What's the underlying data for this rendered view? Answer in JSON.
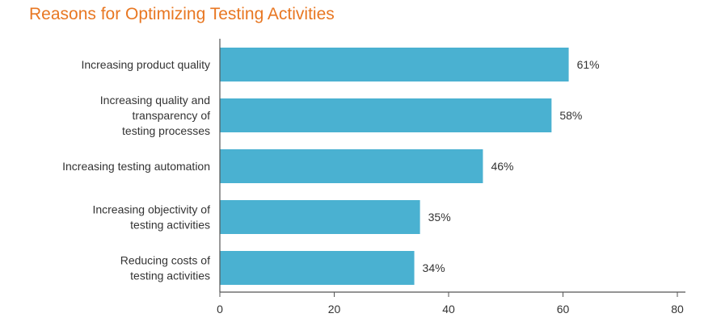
{
  "chart_data": {
    "type": "bar",
    "orientation": "horizontal",
    "title": "Reasons for Optimizing Testing Activities",
    "categories": [
      "Increasing product quality",
      "Increasing quality and transparency of testing processes",
      "Increasing testing automation",
      "Increasing objectivity of testing activities",
      "Reducing costs of testing activities"
    ],
    "category_lines": [
      [
        "Increasing product quality"
      ],
      [
        "Increasing quality and",
        "transparency of",
        "testing processes"
      ],
      [
        "Increasing testing automation"
      ],
      [
        "Increasing objectivity of",
        "testing activities"
      ],
      [
        "Reducing costs of",
        "testing activities"
      ]
    ],
    "values": [
      61,
      58,
      46,
      35,
      34
    ],
    "data_labels": [
      "61%",
      "58%",
      "46%",
      "35%",
      "34%"
    ],
    "xlim": [
      0,
      80
    ],
    "xticks": [
      0,
      20,
      40,
      60,
      80
    ],
    "xlabel": "",
    "ylabel": "",
    "grid": false,
    "legend": "none",
    "bar_color": "#4ab1d1",
    "title_color": "#e87722"
  }
}
